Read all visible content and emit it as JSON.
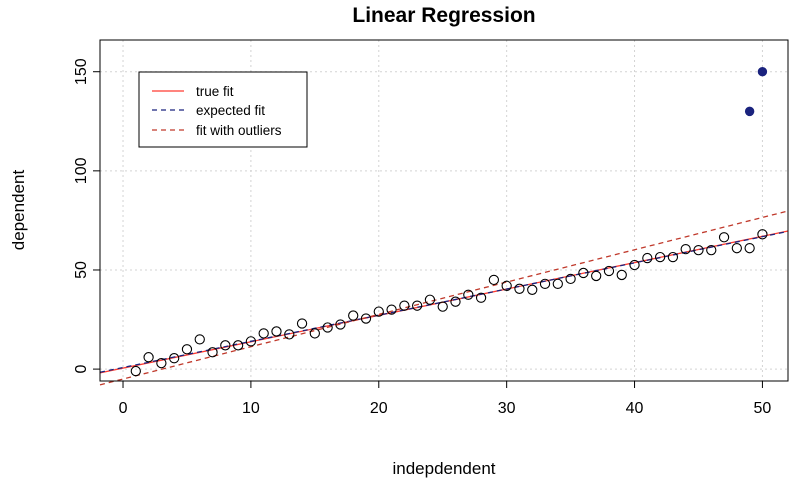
{
  "chart_data": {
    "type": "scatter",
    "title": "Linear Regression",
    "xlabel": "indepdendent",
    "ylabel": "dependent",
    "xlim": [
      -1.8,
      52
    ],
    "ylim": [
      -6,
      166
    ],
    "x_ticks": [
      0,
      10,
      20,
      30,
      40,
      50
    ],
    "y_ticks": [
      0,
      50,
      100,
      150
    ],
    "grid": true,
    "legend_position": "top-left",
    "points": {
      "x": [
        1,
        2,
        3,
        4,
        5,
        6,
        7,
        8,
        9,
        10,
        11,
        12,
        13,
        14,
        15,
        16,
        17,
        18,
        19,
        20,
        21,
        22,
        23,
        24,
        25,
        26,
        27,
        28,
        29,
        30,
        31,
        32,
        33,
        34,
        35,
        36,
        37,
        38,
        39,
        40,
        41,
        42,
        43,
        44,
        45,
        46,
        47,
        48,
        49,
        50
      ],
      "y": [
        -1,
        6,
        3,
        5.5,
        10,
        15,
        8.5,
        12,
        12,
        14,
        18,
        19,
        17.5,
        23,
        18,
        21,
        22.5,
        27,
        25.5,
        29,
        30,
        32,
        32,
        35,
        31.5,
        34,
        37.5,
        36,
        45,
        42,
        40.5,
        40,
        43,
        43,
        45.5,
        48.5,
        47,
        49.5,
        47.5,
        52.5,
        56,
        56.5,
        56.5,
        60.5,
        60,
        60,
        66.5,
        61,
        61,
        68
      ]
    },
    "outliers": {
      "x": [
        49,
        50
      ],
      "y": [
        130,
        150
      ]
    },
    "lines": [
      {
        "name": "true fit",
        "color": "#ff3b30",
        "dash": "solid",
        "intercept": 0.5,
        "slope": 1.33
      },
      {
        "name": "expected fit",
        "color": "#1a237e",
        "dash": "dashed",
        "intercept": 0.8,
        "slope": 1.32
      },
      {
        "name": "fit with outliers",
        "color": "#c0392b",
        "dash": "dashed",
        "intercept": -5.0,
        "slope": 1.63
      }
    ],
    "colors": {
      "outlier_point": "#1a237e",
      "point_stroke": "#000000",
      "grid": "#d3d3d3"
    }
  }
}
